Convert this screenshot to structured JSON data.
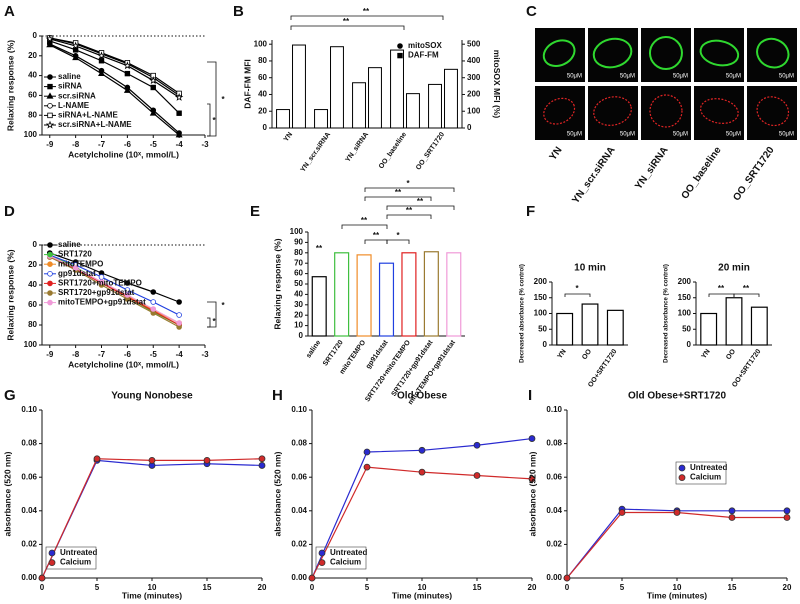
{
  "chart_data": [
    {
      "panel": "A",
      "type": "line",
      "x": [
        -9,
        -8,
        -7,
        -6,
        -5,
        -4
      ],
      "xlim": [
        -9.3,
        -3
      ],
      "xticks": [
        -9,
        -8,
        -7,
        -6,
        -5,
        -4,
        -3
      ],
      "ylim": [
        0,
        100
      ],
      "yticks": [
        0,
        20,
        40,
        60,
        80,
        100
      ],
      "y_inverted": true,
      "x_label": "Acetylcholine (10ˣ, mmol/L)",
      "y_label": "Relaxing response (%)",
      "series": [
        {
          "name": "saline",
          "color": "#000000",
          "marker": "circle",
          "values": [
            8,
            20,
            35,
            52,
            75,
            98
          ]
        },
        {
          "name": "siRNA",
          "color": "#000000",
          "marker": "square",
          "values": [
            5,
            14,
            25,
            38,
            52,
            78
          ]
        },
        {
          "name": "scr.siRNA",
          "color": "#000000",
          "marker": "triangle",
          "values": [
            9,
            22,
            38,
            55,
            78,
            100
          ]
        },
        {
          "name": "L-NAME",
          "color": "#000000",
          "marker": "circle-open",
          "values": [
            2,
            8,
            18,
            28,
            42,
            60
          ]
        },
        {
          "name": "siRNA+L-NAME",
          "color": "#000000",
          "marker": "square-open",
          "values": [
            2,
            7,
            17,
            27,
            40,
            58
          ]
        },
        {
          "name": "scr.siRNA+L-NAME",
          "color": "#000000",
          "marker": "star",
          "values": [
            3,
            10,
            20,
            30,
            45,
            62
          ]
        }
      ],
      "annotations": [
        "*",
        "*"
      ]
    },
    {
      "panel": "B",
      "type": "bar",
      "categories": [
        "YN",
        "YN_scr.siRNA",
        "YN_siRNA",
        "OO_baseline",
        "OO_SRT1720"
      ],
      "ylim": [
        0,
        105
      ],
      "yticks": [
        0,
        20,
        40,
        60,
        80,
        100
      ],
      "y2lim": [
        0,
        525
      ],
      "y2ticks": [
        0,
        100,
        200,
        300,
        400,
        500
      ],
      "y_label": "DAF-FM MFI",
      "y2_label": "mitoSOX MFI (%)",
      "series": [
        {
          "name": "mitoSOX",
          "color": "#000000",
          "marker": "circle",
          "axis": "y2",
          "values": [
            110,
            110,
            270,
            465,
            260
          ]
        },
        {
          "name": "DAF-FM",
          "color": "#000000",
          "marker": "square",
          "values": [
            99,
            97,
            72,
            41,
            70
          ]
        }
      ],
      "annotations": [
        "**",
        "**"
      ]
    },
    {
      "panel": "C",
      "type": "image-grid",
      "columns": [
        "YN",
        "YN_scr.siRNA",
        "YN_siRNA",
        "OO_baseline",
        "OO_SRT1720"
      ],
      "row_colors": [
        "#2fd82f",
        "#e02424"
      ],
      "scale_label": "50μM"
    },
    {
      "panel": "D",
      "type": "line",
      "x": [
        -9,
        -8,
        -7,
        -6,
        -5,
        -4
      ],
      "xlim": [
        -9.3,
        -3
      ],
      "xticks": [
        -9,
        -8,
        -7,
        -6,
        -5,
        -4,
        -3
      ],
      "ylim": [
        0,
        100
      ],
      "yticks": [
        0,
        20,
        40,
        60,
        80,
        100
      ],
      "y_inverted": true,
      "x_label": "Acetylcholine (10ˣ, mmol/L)",
      "y_label": "Relaxing response (%)",
      "series": [
        {
          "name": "saline",
          "color": "#000000",
          "marker": "circle",
          "values": [
            8,
            17,
            28,
            38,
            47,
            57
          ]
        },
        {
          "name": "SRT1720",
          "color": "#3fbf3f",
          "marker": "circle",
          "values": [
            10,
            22,
            38,
            52,
            67,
            80
          ]
        },
        {
          "name": "mitoTEMPO",
          "color": "#f08c28",
          "marker": "circle",
          "values": [
            11,
            23,
            37,
            51,
            65,
            78
          ]
        },
        {
          "name": "gp91dstat",
          "color": "#2040e0",
          "marker": "circle-open",
          "values": [
            10,
            20,
            32,
            45,
            57,
            70
          ]
        },
        {
          "name": "SRT1720+mitoTEMPO",
          "color": "#e02020",
          "marker": "circle",
          "values": [
            12,
            24,
            38,
            52,
            66,
            80
          ]
        },
        {
          "name": "SRT1720+gp91dstat",
          "color": "#9a7a30",
          "marker": "circle",
          "values": [
            12,
            25,
            40,
            54,
            68,
            82
          ]
        },
        {
          "name": "mitoTEMPO+gp91dstat",
          "color": "#f09ad8",
          "marker": "circle",
          "values": [
            11,
            23,
            37,
            50,
            64,
            78
          ]
        }
      ],
      "annotations": [
        "*",
        "*"
      ]
    },
    {
      "panel": "E",
      "type": "bar",
      "categories": [
        "saline",
        "SRT1720",
        "mitoTEMPO",
        "gp91dstat",
        "SRT1720+mitoTEMPO",
        "SRT1720+gp91dstat",
        "mitoTEMPO+gp91dstat"
      ],
      "values": [
        57,
        80,
        78,
        70,
        80,
        81,
        80
      ],
      "colors": [
        "#000000",
        "#3fbf3f",
        "#f08c28",
        "#2040e0",
        "#e02020",
        "#9a7a30",
        "#f09ad8"
      ],
      "ylim": [
        0,
        100
      ],
      "yticks": [
        0,
        10,
        20,
        30,
        40,
        50,
        60,
        70,
        80,
        90,
        100
      ],
      "y_label": "Relaxing response (%)",
      "annotations": [
        "*",
        "**",
        "**",
        "**",
        "**",
        "**",
        "*",
        "**"
      ]
    },
    {
      "panel": "F",
      "type": "bar",
      "title": "10 min",
      "categories": [
        "YN",
        "OO",
        "OO+SRT1720"
      ],
      "values": [
        100,
        130,
        110
      ],
      "color": "#000000",
      "ylim": [
        0,
        200
      ],
      "yticks": [
        0,
        50,
        100,
        150,
        200
      ],
      "y_label": "Decreased absorbance (% control)",
      "annotations": [
        "*"
      ]
    },
    {
      "type": "bar",
      "title": "20 min",
      "categories": [
        "YN",
        "OO",
        "OO+SRT1720"
      ],
      "values": [
        100,
        150,
        120
      ],
      "color": "#000000",
      "ylim": [
        0,
        200
      ],
      "yticks": [
        0,
        50,
        100,
        150,
        200
      ],
      "y_label": "Decreased absorbance (% control)",
      "annotations": [
        "**",
        "**"
      ]
    },
    {
      "panel": "G",
      "type": "line",
      "title": "Young Nonobese",
      "x": [
        0,
        5,
        10,
        15,
        20
      ],
      "xlim": [
        0,
        20
      ],
      "xticks": [
        0,
        5,
        10,
        15,
        20
      ],
      "ylim": [
        0,
        0.1
      ],
      "yticks": [
        {
          "value": 0,
          "label": "0.00"
        },
        {
          "value": 0.02,
          "label": "0.02"
        },
        {
          "value": 0.04,
          "label": "0.04"
        },
        {
          "value": 0.06,
          "label": "0.06"
        },
        {
          "value": 0.08,
          "label": "0.08"
        },
        {
          "value": 0.1,
          "label": "0.10"
        }
      ],
      "x_label": "Time (minutes)",
      "y_label": "absorbance (520 nm)",
      "series": [
        {
          "name": "Untreated",
          "color": "#2a2ad0",
          "marker": "dot",
          "values": [
            0,
            0.07,
            0.067,
            0.068,
            0.067
          ]
        },
        {
          "name": "Calcium",
          "color": "#d02a2a",
          "marker": "dot",
          "values": [
            0,
            0.071,
            0.07,
            0.07,
            0.071
          ]
        }
      ]
    },
    {
      "panel": "H",
      "type": "line",
      "title": "Old Obese",
      "x": [
        0,
        5,
        10,
        15,
        20
      ],
      "xlim": [
        0,
        20
      ],
      "xticks": [
        0,
        5,
        10,
        15,
        20
      ],
      "ylim": [
        0,
        0.1
      ],
      "yticks": [
        {
          "value": 0,
          "label": "0.00"
        },
        {
          "value": 0.02,
          "label": "0.02"
        },
        {
          "value": 0.04,
          "label": "0.04"
        },
        {
          "value": 0.06,
          "label": "0.06"
        },
        {
          "value": 0.08,
          "label": "0.08"
        },
        {
          "value": 0.1,
          "label": "0.10"
        }
      ],
      "x_label": "Time (minutes)",
      "y_label": "absorbance (520 nm)",
      "series": [
        {
          "name": "Untreated",
          "color": "#2a2ad0",
          "marker": "dot",
          "values": [
            0,
            0.075,
            0.076,
            0.079,
            0.083
          ]
        },
        {
          "name": "Calcium",
          "color": "#d02a2a",
          "marker": "dot",
          "values": [
            0,
            0.066,
            0.063,
            0.061,
            0.059
          ]
        }
      ]
    },
    {
      "panel": "I",
      "type": "line",
      "title": "Old Obese+SRT1720",
      "x": [
        0,
        5,
        10,
        15,
        20
      ],
      "xlim": [
        0,
        20
      ],
      "xticks": [
        0,
        5,
        10,
        15,
        20
      ],
      "ylim": [
        0,
        0.1
      ],
      "yticks": [
        {
          "value": 0,
          "label": "0.00"
        },
        {
          "value": 0.02,
          "label": "0.02"
        },
        {
          "value": 0.04,
          "label": "0.04"
        },
        {
          "value": 0.06,
          "label": "0.06"
        },
        {
          "value": 0.08,
          "label": "0.08"
        },
        {
          "value": 0.1,
          "label": "0.10"
        }
      ],
      "x_label": "Time (minutes)",
      "y_label": "absorbance (520 nm)",
      "series": [
        {
          "name": "Untreated",
          "color": "#2a2ad0",
          "marker": "dot",
          "values": [
            0,
            0.041,
            0.04,
            0.04,
            0.04
          ]
        },
        {
          "name": "Calcium",
          "color": "#d02a2a",
          "marker": "dot",
          "values": [
            0,
            0.039,
            0.039,
            0.036,
            0.036
          ]
        }
      ]
    }
  ]
}
